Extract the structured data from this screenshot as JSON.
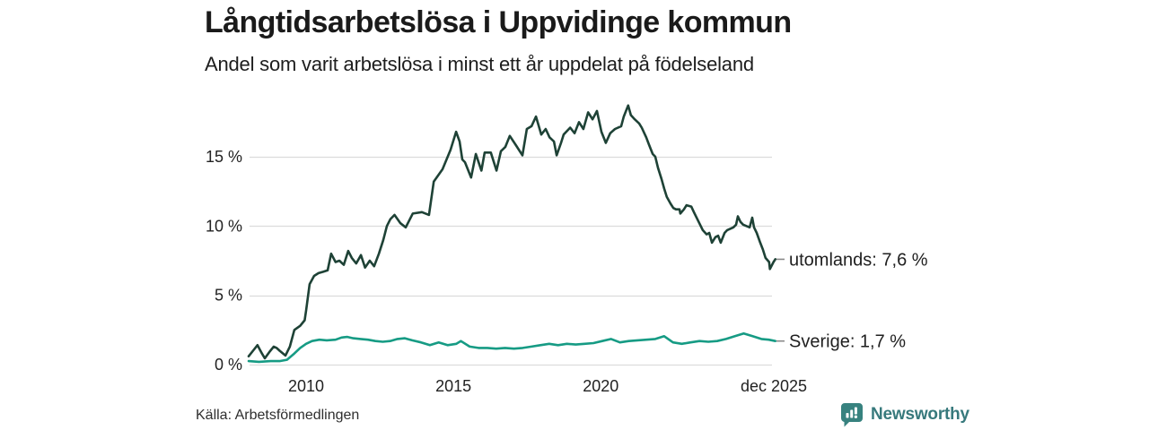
{
  "header": {
    "title": "Långtidsarbetslösa i Uppvidinge kommun",
    "subtitle": "Andel som varit arbetslösa i minst ett år uppdelat på födelseland"
  },
  "source": "Källa: Arbetsförmedlingen",
  "branding": {
    "name": "Newsworthy",
    "color": "#37797c",
    "icon": "bar-chart-speech-bubble-icon"
  },
  "colors": {
    "background": "#ffffff",
    "gridline": "#dcdcdc",
    "tick_text": "#222222",
    "end_label_text": "#1f1f1f",
    "end_label_dash": "#8a8a8a",
    "series_utomlands": "#1e4236",
    "series_sverige": "#169b84"
  },
  "chart_data": {
    "type": "line",
    "title": "Långtidsarbetslösa i Uppvidinge kommun",
    "subtitle": "Andel som varit arbetslösa i minst ett år uppdelat på födelseland",
    "xlabel": "",
    "ylabel": "",
    "grid": "horizontal",
    "legend_position": "end-of-line",
    "xlim": [
      2008.05,
      2025.92
    ],
    "ylim": [
      0,
      19
    ],
    "y_grid": [
      {
        "value": 0,
        "label": "0 %"
      },
      {
        "value": 5,
        "label": "5 %"
      },
      {
        "value": 10,
        "label": "10 %"
      },
      {
        "value": 15,
        "label": "15 %"
      }
    ],
    "x_ticks": [
      {
        "x": 2010,
        "label": "2010"
      },
      {
        "x": 2015,
        "label": "2015"
      },
      {
        "x": 2020,
        "label": "2020"
      },
      {
        "x": 2025.87,
        "label": "dec 2025"
      }
    ],
    "series": [
      {
        "name": "utomlands",
        "end_label": "utomlands: 7,6 %",
        "last_value": 7.6,
        "color": "#1e4236",
        "points": [
          [
            2008.05,
            0.6
          ],
          [
            2008.2,
            1.0
          ],
          [
            2008.35,
            1.4
          ],
          [
            2008.5,
            0.8
          ],
          [
            2008.6,
            0.45
          ],
          [
            2008.75,
            0.9
          ],
          [
            2008.9,
            1.3
          ],
          [
            2009.0,
            1.2
          ],
          [
            2009.1,
            1.0
          ],
          [
            2009.3,
            0.65
          ],
          [
            2009.45,
            1.3
          ],
          [
            2009.6,
            2.5
          ],
          [
            2009.8,
            2.8
          ],
          [
            2009.95,
            3.2
          ],
          [
            2010.0,
            3.9
          ],
          [
            2010.12,
            5.8
          ],
          [
            2010.27,
            6.4
          ],
          [
            2010.42,
            6.6
          ],
          [
            2010.58,
            6.7
          ],
          [
            2010.73,
            6.8
          ],
          [
            2010.85,
            8.0
          ],
          [
            2011.0,
            7.4
          ],
          [
            2011.13,
            7.5
          ],
          [
            2011.28,
            7.2
          ],
          [
            2011.43,
            8.2
          ],
          [
            2011.55,
            7.7
          ],
          [
            2011.7,
            7.3
          ],
          [
            2011.86,
            7.9
          ],
          [
            2012.0,
            7.0
          ],
          [
            2012.16,
            7.5
          ],
          [
            2012.31,
            7.1
          ],
          [
            2012.47,
            8.0
          ],
          [
            2012.62,
            9.0
          ],
          [
            2012.74,
            10.0
          ],
          [
            2012.86,
            10.5
          ],
          [
            2013.0,
            10.8
          ],
          [
            2013.2,
            10.2
          ],
          [
            2013.38,
            9.9
          ],
          [
            2013.62,
            10.9
          ],
          [
            2013.93,
            11.0
          ],
          [
            2014.17,
            10.8
          ],
          [
            2014.33,
            13.2
          ],
          [
            2014.63,
            14.1
          ],
          [
            2014.9,
            15.5
          ],
          [
            2015.09,
            16.8
          ],
          [
            2015.21,
            16.1
          ],
          [
            2015.3,
            14.8
          ],
          [
            2015.39,
            14.6
          ],
          [
            2015.6,
            13.5
          ],
          [
            2015.76,
            15.2
          ],
          [
            2015.95,
            14.0
          ],
          [
            2016.06,
            15.3
          ],
          [
            2016.27,
            15.3
          ],
          [
            2016.46,
            14.0
          ],
          [
            2016.61,
            15.4
          ],
          [
            2016.76,
            15.7
          ],
          [
            2016.91,
            16.5
          ],
          [
            2017.13,
            15.8
          ],
          [
            2017.34,
            15.1
          ],
          [
            2017.49,
            17.0
          ],
          [
            2017.65,
            17.2
          ],
          [
            2017.8,
            17.9
          ],
          [
            2017.98,
            16.6
          ],
          [
            2018.13,
            17.0
          ],
          [
            2018.26,
            16.4
          ],
          [
            2018.41,
            16.1
          ],
          [
            2018.5,
            15.1
          ],
          [
            2018.65,
            16.0
          ],
          [
            2018.74,
            16.6
          ],
          [
            2018.96,
            17.1
          ],
          [
            2019.11,
            16.7
          ],
          [
            2019.26,
            17.5
          ],
          [
            2019.41,
            17.0
          ],
          [
            2019.57,
            18.2
          ],
          [
            2019.72,
            17.7
          ],
          [
            2019.87,
            18.3
          ],
          [
            2020.02,
            16.8
          ],
          [
            2020.17,
            16.0
          ],
          [
            2020.32,
            16.7
          ],
          [
            2020.48,
            17.0
          ],
          [
            2020.69,
            17.2
          ],
          [
            2020.78,
            17.9
          ],
          [
            2020.93,
            18.7
          ],
          [
            2021.02,
            18.0
          ],
          [
            2021.15,
            17.7
          ],
          [
            2021.3,
            17.4
          ],
          [
            2021.39,
            17.1
          ],
          [
            2021.54,
            16.4
          ],
          [
            2021.63,
            15.9
          ],
          [
            2021.76,
            15.2
          ],
          [
            2021.85,
            15.0
          ],
          [
            2021.94,
            14.2
          ],
          [
            2022.06,
            13.4
          ],
          [
            2022.15,
            12.7
          ],
          [
            2022.24,
            12.1
          ],
          [
            2022.37,
            11.6
          ],
          [
            2022.46,
            11.3
          ],
          [
            2022.55,
            11.2
          ],
          [
            2022.67,
            11.2
          ],
          [
            2022.7,
            10.9
          ],
          [
            2022.82,
            11.2
          ],
          [
            2022.91,
            11.5
          ],
          [
            2023.07,
            11.4
          ],
          [
            2023.16,
            11.0
          ],
          [
            2023.37,
            10.1
          ],
          [
            2023.46,
            9.7
          ],
          [
            2023.59,
            9.4
          ],
          [
            2023.68,
            9.5
          ],
          [
            2023.77,
            8.8
          ],
          [
            2023.89,
            9.2
          ],
          [
            2023.98,
            9.3
          ],
          [
            2024.07,
            8.8
          ],
          [
            2024.2,
            9.5
          ],
          [
            2024.29,
            9.7
          ],
          [
            2024.5,
            9.9
          ],
          [
            2024.59,
            10.1
          ],
          [
            2024.65,
            10.7
          ],
          [
            2024.74,
            10.3
          ],
          [
            2024.83,
            10.1
          ],
          [
            2025.05,
            9.9
          ],
          [
            2025.14,
            10.6
          ],
          [
            2025.2,
            9.9
          ],
          [
            2025.29,
            9.5
          ],
          [
            2025.41,
            8.8
          ],
          [
            2025.5,
            8.3
          ],
          [
            2025.59,
            7.7
          ],
          [
            2025.71,
            7.4
          ],
          [
            2025.74,
            6.9
          ],
          [
            2025.86,
            7.4
          ],
          [
            2025.92,
            7.6
          ]
        ]
      },
      {
        "name": "Sverige",
        "end_label": "Sverige: 1,7 %",
        "last_value": 1.7,
        "color": "#169b84",
        "points": [
          [
            2008.05,
            0.25
          ],
          [
            2008.4,
            0.2
          ],
          [
            2008.8,
            0.25
          ],
          [
            2009.1,
            0.25
          ],
          [
            2009.35,
            0.35
          ],
          [
            2009.6,
            0.8
          ],
          [
            2009.8,
            1.2
          ],
          [
            2010.0,
            1.5
          ],
          [
            2010.2,
            1.7
          ],
          [
            2010.45,
            1.8
          ],
          [
            2010.7,
            1.75
          ],
          [
            2011.0,
            1.8
          ],
          [
            2011.2,
            1.95
          ],
          [
            2011.4,
            2.0
          ],
          [
            2011.6,
            1.9
          ],
          [
            2011.85,
            1.85
          ],
          [
            2012.1,
            1.8
          ],
          [
            2012.35,
            1.7
          ],
          [
            2012.6,
            1.65
          ],
          [
            2012.85,
            1.7
          ],
          [
            2013.1,
            1.85
          ],
          [
            2013.35,
            1.9
          ],
          [
            2013.6,
            1.75
          ],
          [
            2013.9,
            1.6
          ],
          [
            2014.2,
            1.4
          ],
          [
            2014.5,
            1.6
          ],
          [
            2014.8,
            1.4
          ],
          [
            2015.1,
            1.5
          ],
          [
            2015.25,
            1.7
          ],
          [
            2015.55,
            1.3
          ],
          [
            2015.85,
            1.2
          ],
          [
            2016.15,
            1.2
          ],
          [
            2016.45,
            1.15
          ],
          [
            2016.75,
            1.2
          ],
          [
            2017.05,
            1.15
          ],
          [
            2017.35,
            1.2
          ],
          [
            2017.65,
            1.3
          ],
          [
            2017.95,
            1.4
          ],
          [
            2018.25,
            1.5
          ],
          [
            2018.55,
            1.4
          ],
          [
            2018.85,
            1.5
          ],
          [
            2019.15,
            1.45
          ],
          [
            2019.45,
            1.5
          ],
          [
            2019.75,
            1.55
          ],
          [
            2020.05,
            1.7
          ],
          [
            2020.35,
            1.85
          ],
          [
            2020.65,
            1.6
          ],
          [
            2020.95,
            1.7
          ],
          [
            2021.25,
            1.75
          ],
          [
            2021.55,
            1.8
          ],
          [
            2021.85,
            1.85
          ],
          [
            2022.15,
            2.05
          ],
          [
            2022.45,
            1.6
          ],
          [
            2022.75,
            1.5
          ],
          [
            2023.05,
            1.6
          ],
          [
            2023.35,
            1.7
          ],
          [
            2023.65,
            1.65
          ],
          [
            2023.95,
            1.7
          ],
          [
            2024.25,
            1.85
          ],
          [
            2024.55,
            2.05
          ],
          [
            2024.85,
            2.25
          ],
          [
            2025.15,
            2.05
          ],
          [
            2025.45,
            1.85
          ],
          [
            2025.7,
            1.8
          ],
          [
            2025.92,
            1.7
          ]
        ]
      }
    ]
  }
}
